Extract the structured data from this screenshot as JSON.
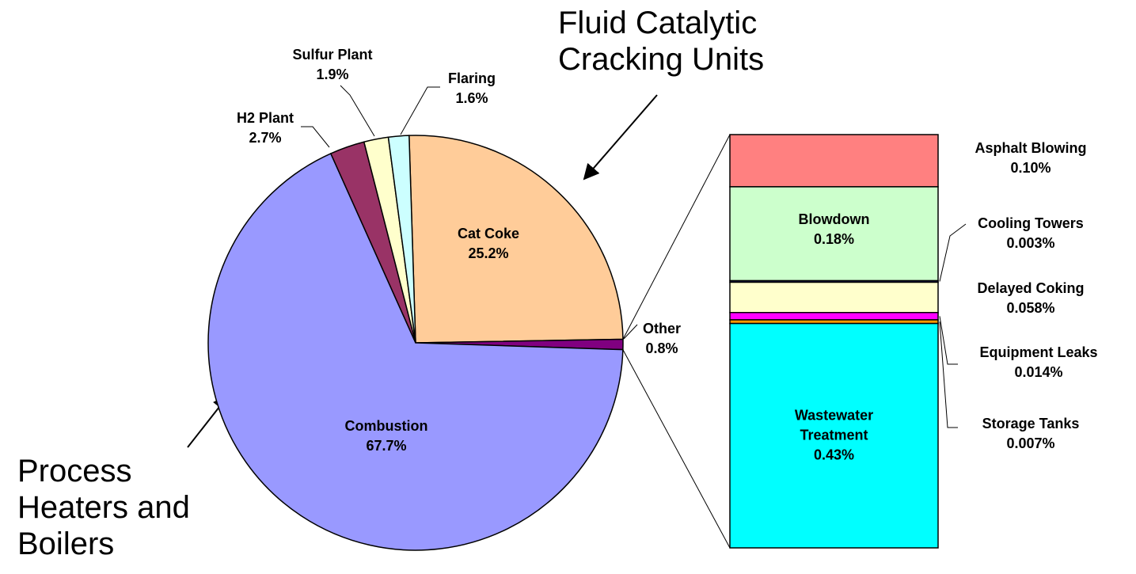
{
  "chart_data": [
    {
      "type": "pie",
      "categories": [
        "Cat Coke",
        "Other",
        "Combustion",
        "H2 Plant",
        "Sulfur Plant",
        "Flaring"
      ],
      "values": [
        25.2,
        0.8,
        67.7,
        2.7,
        1.9,
        1.6
      ],
      "value_labels": [
        "25.2%",
        "0.8%",
        "67.7%",
        "2.7%",
        "1.9%",
        "1.6%"
      ],
      "colors": [
        "#ffcc99",
        "#800080",
        "#9999ff",
        "#993366",
        "#ffffcc",
        "#ccffff"
      ],
      "annotations": [
        "Fluid Catalytic Cracking Units",
        "Process Heaters and Boilers"
      ]
    },
    {
      "type": "stacked_bar",
      "categories": [
        "Asphalt Blowing",
        "Blowdown",
        "Cooling Towers",
        "Delayed Coking",
        "Equipment Leaks",
        "Storage Tanks",
        "Wastewater Treatment"
      ],
      "values": [
        0.1,
        0.18,
        0.003,
        0.058,
        0.014,
        0.007,
        0.43
      ],
      "value_labels": [
        "0.10%",
        "0.18%",
        "0.003%",
        "0.058%",
        "0.014%",
        "0.007%",
        "0.43%"
      ],
      "colors": [
        "#ff8080",
        "#ccffcc",
        "#000080",
        "#ffffcc",
        "#ff00ff",
        "#ff9900",
        "#00ffff"
      ]
    }
  ]
}
